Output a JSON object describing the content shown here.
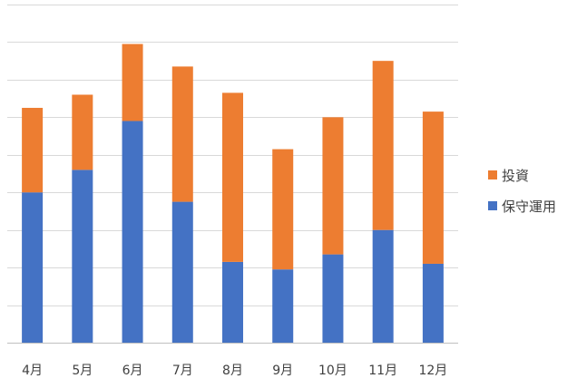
{
  "chart_data": {
    "type": "bar",
    "stacked": true,
    "categories": [
      "4月",
      "5月",
      "6月",
      "7月",
      "8月",
      "9月",
      "10月",
      "11月",
      "12月"
    ],
    "series": [
      {
        "name": "保守運用",
        "color": "#4472C4",
        "values": [
          40,
          46,
          59,
          37.5,
          21.5,
          19.5,
          23.5,
          30,
          21
        ]
      },
      {
        "name": "投資",
        "color": "#ED7D31",
        "values": [
          22.5,
          20,
          20.5,
          36,
          45,
          32,
          36.5,
          45,
          40.5
        ]
      }
    ],
    "ylim": [
      0,
      90
    ],
    "grid": true,
    "legend_position": "right"
  }
}
